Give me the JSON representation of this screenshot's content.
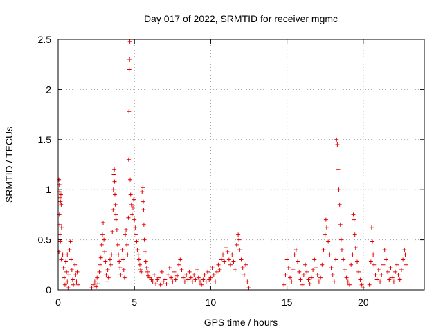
{
  "chart_data": {
    "type": "scatter",
    "title": "Day 017 of 2022, SRMTID for receiver mgmc",
    "xlabel": "GPS time / hours",
    "ylabel": "SRMTID / TECUs",
    "xlim": [
      0,
      24
    ],
    "ylim": [
      0,
      2.5
    ],
    "xticks": [
      0,
      5,
      10,
      15,
      20
    ],
    "xtick_labels": [
      "0",
      "5",
      "10",
      "15",
      "20"
    ],
    "yticks": [
      0,
      0.5,
      1,
      1.5,
      2,
      2.5
    ],
    "ytick_labels": [
      "0",
      "0.5",
      "1",
      "1.5",
      "2",
      "2.5"
    ],
    "grid": true,
    "marker": "+",
    "color": "#e00000",
    "series": [
      {
        "name": "SRMTID",
        "points": [
          [
            0.05,
            1.1
          ],
          [
            0.08,
            1.05
          ],
          [
            0.1,
            0.98
          ],
          [
            0.12,
            0.92
          ],
          [
            0.15,
            0.88
          ],
          [
            0.18,
            0.95
          ],
          [
            0.2,
            0.85
          ],
          [
            0.08,
            0.75
          ],
          [
            0.1,
            0.65
          ],
          [
            0.12,
            0.55
          ],
          [
            0.15,
            0.48
          ],
          [
            0.05,
            0.38
          ],
          [
            0.2,
            0.3
          ],
          [
            0.22,
            0.62
          ],
          [
            0.3,
            0.35
          ],
          [
            0.35,
            0.22
          ],
          [
            0.4,
            0.12
          ],
          [
            0.45,
            0.05
          ],
          [
            0.5,
            0.28
          ],
          [
            0.55,
            0.18
          ],
          [
            0.6,
            0.08
          ],
          [
            0.65,
            0.02
          ],
          [
            0.7,
            0.15
          ],
          [
            0.75,
            0.4
          ],
          [
            0.8,
            0.48
          ],
          [
            0.85,
            0.3
          ],
          [
            0.9,
            0.2
          ],
          [
            0.95,
            0.1
          ],
          [
            1.0,
            0.05
          ],
          [
            1.1,
            0.25
          ],
          [
            1.15,
            0.15
          ],
          [
            1.2,
            0.08
          ],
          [
            1.25,
            0.18
          ],
          [
            1.3,
            0.05
          ],
          [
            0.6,
            0.35
          ],
          [
            2.2,
            0.02
          ],
          [
            2.3,
            0.05
          ],
          [
            2.4,
            0.08
          ],
          [
            2.5,
            0.03
          ],
          [
            2.55,
            0.12
          ],
          [
            2.6,
            0.06
          ],
          [
            2.7,
            0.18
          ],
          [
            2.75,
            0.25
          ],
          [
            2.8,
            0.32
          ],
          [
            2.85,
            0.45
          ],
          [
            2.9,
            0.55
          ],
          [
            2.95,
            0.67
          ],
          [
            3.0,
            0.5
          ],
          [
            3.05,
            0.38
          ],
          [
            3.1,
            0.28
          ],
          [
            3.15,
            0.15
          ],
          [
            3.2,
            0.08
          ],
          [
            3.25,
            0.2
          ],
          [
            3.3,
            0.12
          ],
          [
            3.4,
            0.3
          ],
          [
            3.45,
            0.25
          ],
          [
            3.5,
            0.35
          ],
          [
            3.55,
            0.58
          ],
          [
            3.6,
            0.8
          ],
          [
            3.62,
            1.0
          ],
          [
            3.65,
            1.15
          ],
          [
            3.68,
            1.2
          ],
          [
            3.7,
            1.08
          ],
          [
            3.72,
            0.95
          ],
          [
            3.75,
            0.85
          ],
          [
            3.78,
            0.75
          ],
          [
            3.8,
            0.7
          ],
          [
            3.85,
            0.6
          ],
          [
            3.9,
            0.45
          ],
          [
            3.95,
            0.35
          ],
          [
            4.0,
            0.28
          ],
          [
            4.05,
            0.22
          ],
          [
            4.1,
            0.15
          ],
          [
            4.2,
            0.4
          ],
          [
            4.25,
            0.3
          ],
          [
            4.3,
            0.2
          ],
          [
            4.35,
            0.12
          ],
          [
            4.4,
            0.55
          ],
          [
            4.45,
            0.6
          ],
          [
            4.5,
            0.45
          ],
          [
            4.55,
            0.35
          ],
          [
            4.6,
            0.72
          ],
          [
            4.62,
            1.3
          ],
          [
            4.64,
            1.78
          ],
          [
            4.66,
            2.2
          ],
          [
            4.68,
            2.3
          ],
          [
            4.7,
            2.48
          ],
          [
            4.72,
            1.1
          ],
          [
            4.75,
            0.95
          ],
          [
            4.8,
            0.85
          ],
          [
            4.85,
            0.75
          ],
          [
            4.9,
            0.82
          ],
          [
            4.95,
            0.9
          ],
          [
            5.0,
            0.7
          ],
          [
            5.05,
            0.62
          ],
          [
            5.1,
            0.55
          ],
          [
            5.15,
            0.48
          ],
          [
            5.2,
            0.4
          ],
          [
            5.25,
            0.35
          ],
          [
            5.3,
            0.3
          ],
          [
            5.35,
            0.25
          ],
          [
            5.4,
            0.2
          ],
          [
            5.45,
            0.18
          ],
          [
            5.5,
            0.98
          ],
          [
            5.55,
            1.02
          ],
          [
            5.58,
            0.88
          ],
          [
            5.6,
            0.8
          ],
          [
            5.62,
            0.65
          ],
          [
            5.65,
            0.5
          ],
          [
            5.7,
            0.38
          ],
          [
            5.75,
            0.28
          ],
          [
            5.8,
            0.22
          ],
          [
            5.85,
            0.18
          ],
          [
            5.9,
            0.14
          ],
          [
            6.0,
            0.12
          ],
          [
            6.1,
            0.1
          ],
          [
            6.2,
            0.08
          ],
          [
            6.3,
            0.15
          ],
          [
            6.4,
            0.06
          ],
          [
            6.5,
            0.1
          ],
          [
            6.6,
            0.12
          ],
          [
            6.7,
            0.05
          ],
          [
            6.8,
            0.18
          ],
          [
            6.9,
            0.08
          ],
          [
            7.0,
            0.1
          ],
          [
            7.1,
            0.06
          ],
          [
            7.2,
            0.15
          ],
          [
            7.3,
            0.22
          ],
          [
            7.4,
            0.12
          ],
          [
            7.5,
            0.08
          ],
          [
            7.6,
            0.18
          ],
          [
            7.7,
            0.1
          ],
          [
            7.8,
            0.14
          ],
          [
            7.9,
            0.25
          ],
          [
            8.0,
            0.3
          ],
          [
            8.1,
            0.2
          ],
          [
            8.2,
            0.12
          ],
          [
            8.3,
            0.08
          ],
          [
            8.4,
            0.15
          ],
          [
            8.5,
            0.1
          ],
          [
            8.6,
            0.18
          ],
          [
            8.7,
            0.12
          ],
          [
            8.8,
            0.08
          ],
          [
            8.9,
            0.15
          ],
          [
            9.0,
            0.1
          ],
          [
            9.1,
            0.2
          ],
          [
            9.2,
            0.12
          ],
          [
            9.3,
            0.08
          ],
          [
            9.4,
            0.05
          ],
          [
            9.5,
            0.1
          ],
          [
            9.6,
            0.15
          ],
          [
            9.7,
            0.08
          ],
          [
            9.8,
            0.18
          ],
          [
            9.9,
            0.1
          ],
          [
            10.0,
            0.12
          ],
          [
            10.1,
            0.22
          ],
          [
            10.2,
            0.15
          ],
          [
            10.3,
            0.08
          ],
          [
            10.4,
            0.18
          ],
          [
            10.5,
            0.25
          ],
          [
            10.6,
            0.2
          ],
          [
            10.7,
            0.3
          ],
          [
            10.8,
            0.35
          ],
          [
            10.9,
            0.28
          ],
          [
            11.0,
            0.42
          ],
          [
            11.1,
            0.38
          ],
          [
            11.2,
            0.3
          ],
          [
            11.3,
            0.25
          ],
          [
            11.4,
            0.35
          ],
          [
            11.5,
            0.28
          ],
          [
            11.6,
            0.2
          ],
          [
            11.7,
            0.45
          ],
          [
            11.8,
            0.55
          ],
          [
            11.85,
            0.5
          ],
          [
            11.9,
            0.4
          ],
          [
            12.0,
            0.3
          ],
          [
            12.1,
            0.22
          ],
          [
            12.2,
            0.15
          ],
          [
            12.3,
            0.25
          ],
          [
            12.4,
            0.08
          ],
          [
            12.5,
            0.02
          ],
          [
            14.8,
            0.05
          ],
          [
            14.9,
            0.15
          ],
          [
            15.0,
            0.3
          ],
          [
            15.1,
            0.22
          ],
          [
            15.2,
            0.12
          ],
          [
            15.3,
            0.08
          ],
          [
            15.4,
            0.2
          ],
          [
            15.5,
            0.35
          ],
          [
            15.6,
            0.4
          ],
          [
            15.7,
            0.28
          ],
          [
            15.8,
            0.18
          ],
          [
            15.9,
            0.1
          ],
          [
            16.0,
            0.05
          ],
          [
            16.1,
            0.15
          ],
          [
            16.2,
            0.25
          ],
          [
            16.3,
            0.18
          ],
          [
            16.4,
            0.1
          ],
          [
            16.5,
            0.06
          ],
          [
            16.6,
            0.12
          ],
          [
            16.7,
            0.2
          ],
          [
            16.8,
            0.3
          ],
          [
            16.9,
            0.22
          ],
          [
            17.0,
            0.15
          ],
          [
            17.1,
            0.08
          ],
          [
            17.2,
            0.12
          ],
          [
            17.3,
            0.25
          ],
          [
            17.4,
            0.4
          ],
          [
            17.5,
            0.55
          ],
          [
            17.55,
            0.7
          ],
          [
            17.6,
            0.62
          ],
          [
            17.7,
            0.48
          ],
          [
            17.8,
            0.35
          ],
          [
            17.9,
            0.22
          ],
          [
            18.0,
            0.15
          ],
          [
            18.1,
            0.08
          ],
          [
            18.2,
            0.3
          ],
          [
            18.25,
            1.5
          ],
          [
            18.3,
            1.45
          ],
          [
            18.35,
            1.2
          ],
          [
            18.4,
            1.0
          ],
          [
            18.45,
            0.85
          ],
          [
            18.5,
            0.65
          ],
          [
            18.55,
            0.5
          ],
          [
            18.6,
            0.4
          ],
          [
            18.7,
            0.3
          ],
          [
            18.8,
            0.2
          ],
          [
            18.9,
            0.12
          ],
          [
            19.0,
            0.08
          ],
          [
            19.1,
            0.05
          ],
          [
            19.2,
            0.25
          ],
          [
            19.3,
            0.35
          ],
          [
            19.35,
            0.75
          ],
          [
            19.4,
            0.7
          ],
          [
            19.45,
            0.55
          ],
          [
            19.5,
            0.42
          ],
          [
            19.6,
            0.28
          ],
          [
            19.7,
            0.18
          ],
          [
            19.8,
            0.1
          ],
          [
            19.9,
            0.05
          ],
          [
            20.0,
            0.02
          ],
          [
            20.4,
            0.05
          ],
          [
            20.5,
            0.28
          ],
          [
            20.55,
            0.62
          ],
          [
            20.6,
            0.48
          ],
          [
            20.65,
            0.35
          ],
          [
            20.7,
            0.25
          ],
          [
            20.8,
            0.15
          ],
          [
            20.9,
            0.1
          ],
          [
            21.0,
            0.2
          ],
          [
            21.1,
            0.08
          ],
          [
            21.2,
            0.15
          ],
          [
            21.3,
            0.25
          ],
          [
            21.4,
            0.4
          ],
          [
            21.5,
            0.3
          ],
          [
            21.6,
            0.18
          ],
          [
            21.7,
            0.1
          ],
          [
            21.8,
            0.22
          ],
          [
            21.9,
            0.12
          ],
          [
            22.0,
            0.08
          ],
          [
            22.1,
            0.18
          ],
          [
            22.2,
            0.25
          ],
          [
            22.3,
            0.15
          ],
          [
            22.4,
            0.1
          ],
          [
            22.5,
            0.2
          ],
          [
            22.6,
            0.3
          ],
          [
            22.7,
            0.4
          ],
          [
            22.75,
            0.35
          ],
          [
            22.8,
            0.25
          ]
        ]
      }
    ]
  }
}
